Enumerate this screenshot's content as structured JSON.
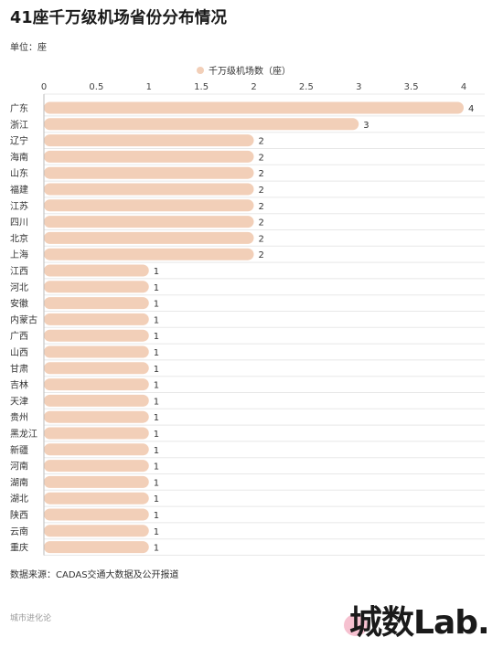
{
  "title": "41座千万级机场省份分布情况",
  "unit_label": "单位：座",
  "source": "数据来源：CADAS交通大数据及公开报道",
  "footer": "城市进化论",
  "brand": "城数Lab.",
  "colors": {
    "bar": "#f2cfb8",
    "grid": "#e8e8e8",
    "axis": "#999999"
  },
  "chart_data": {
    "type": "bar",
    "orientation": "horizontal",
    "categories": [
      "广东",
      "浙江",
      "辽宁",
      "海南",
      "山东",
      "福建",
      "江苏",
      "四川",
      "北京",
      "上海",
      "江西",
      "河北",
      "安徽",
      "内蒙古",
      "广西",
      "山西",
      "甘肃",
      "吉林",
      "天津",
      "贵州",
      "黑龙江",
      "新疆",
      "河南",
      "湖南",
      "湖北",
      "陕西",
      "云南",
      "重庆"
    ],
    "series": [
      {
        "name": "千万级机场数（座）",
        "values": [
          4,
          3,
          2,
          2,
          2,
          2,
          2,
          2,
          2,
          2,
          1,
          1,
          1,
          1,
          1,
          1,
          1,
          1,
          1,
          1,
          1,
          1,
          1,
          1,
          1,
          1,
          1,
          1
        ]
      }
    ],
    "xlim": [
      0,
      4
    ],
    "x_ticks": [
      "0",
      "0.5",
      "1",
      "1.5",
      "2",
      "2.5",
      "3",
      "3.5",
      "4"
    ],
    "x_axis_position": "top",
    "legend_position": "top",
    "grid": false
  }
}
